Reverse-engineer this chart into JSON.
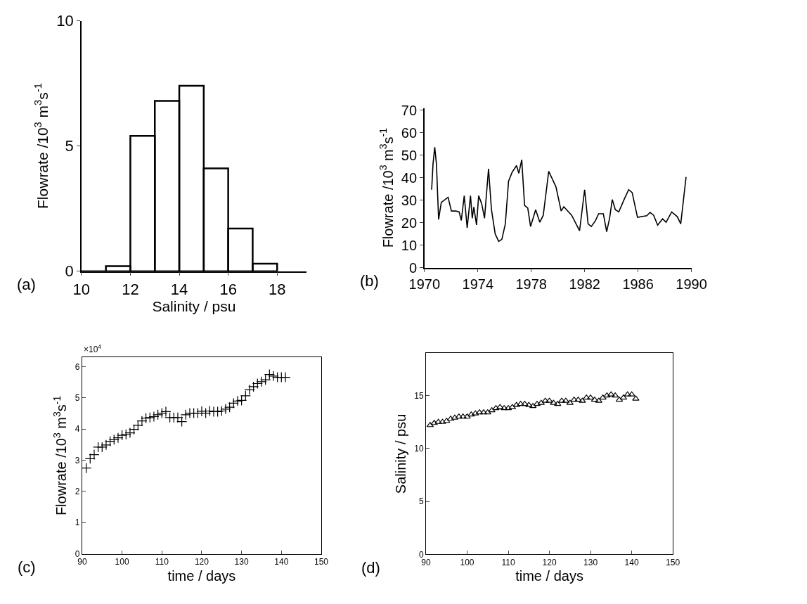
{
  "chart_data": [
    {
      "type": "histogram",
      "xlabel": "Salinity / psu",
      "ylabel": "Flowrate /10$^{3}$ m$^{3}$s$^{-1}$",
      "annotations": [
        "(a)"
      ],
      "bins": [
        10,
        11,
        12,
        13,
        14,
        15,
        16,
        17,
        18
      ],
      "values": [
        0,
        0.2,
        5.4,
        6.8,
        7.4,
        4.1,
        1.7,
        0.3
      ],
      "color": "#000000",
      "xlim": [
        10,
        19.2
      ],
      "xticks": [
        10,
        12,
        14,
        16,
        18
      ],
      "ylim": [
        0,
        10
      ],
      "yticks": [
        0,
        5,
        10
      ]
    },
    {
      "type": "line",
      "ylabel": "Flowrate /10$^{3}$ m$^{3}$s$^{-1}$",
      "annotations": [
        "(b)"
      ],
      "color": "#000000",
      "x": [
        1970.54,
        1970.64,
        1970.77,
        1970.9,
        1971.06,
        1971.26,
        1971.77,
        1972.02,
        1972.36,
        1972.6,
        1972.76,
        1972.98,
        1973.2,
        1973.45,
        1973.58,
        1973.7,
        1973.9,
        1974.06,
        1974.29,
        1974.5,
        1974.8,
        1975.02,
        1975.3,
        1975.56,
        1975.8,
        1976.06,
        1976.3,
        1976.57,
        1976.9,
        1977.07,
        1977.29,
        1977.5,
        1977.74,
        1977.95,
        1978.33,
        1978.64,
        1978.9,
        1979.31,
        1979.85,
        1980.24,
        1980.44,
        1981.03,
        1981.62,
        1982.0,
        1982.26,
        1982.5,
        1982.8,
        1983.05,
        1983.4,
        1983.65,
        1983.87,
        1984.07,
        1984.3,
        1984.56,
        1985.0,
        1985.3,
        1985.56,
        1985.96,
        1986.66,
        1986.9,
        1987.17,
        1987.47,
        1987.84,
        1988.1,
        1988.52,
        1988.94,
        1989.2,
        1989.6
      ],
      "values": [
        34.7,
        46,
        53.6,
        46,
        21.4,
        29,
        31.3,
        25.2,
        25.2,
        24.8,
        21,
        32,
        17.7,
        32,
        22,
        27,
        19,
        32,
        28.4,
        22,
        44,
        25.8,
        15,
        11.7,
        12.6,
        19.5,
        38.5,
        42.5,
        45.4,
        42,
        48,
        27.7,
        26.5,
        18.3,
        25.8,
        20.2,
        23.3,
        42.9,
        36,
        25.2,
        27.1,
        23.3,
        16.4,
        34.7,
        19.5,
        18.3,
        20.8,
        24,
        24,
        16,
        22,
        30.3,
        25.8,
        24.8,
        30.9,
        34.7,
        33.4,
        22.4,
        23.1,
        24.6,
        23.3,
        18.9,
        21.7,
        20.2,
        24.8,
        22.7,
        19.5,
        40.4
      ],
      "xlim": [
        1970,
        1990
      ],
      "xticks": [
        1970,
        1974,
        1978,
        1982,
        1986,
        1990
      ],
      "ylim": [
        0,
        71
      ],
      "yticks": [
        0,
        10,
        20,
        30,
        40,
        50,
        60,
        70
      ]
    },
    {
      "type": "scatter",
      "marker": "cross",
      "xlabel": "time / days",
      "ylabel": "Flowrate /10$^{3}$ m$^{3}$s$^{-1}$",
      "annotations": [
        "(c)",
        "×10$^{4}$"
      ],
      "color": "#000000",
      "x": [
        91,
        92,
        93,
        94,
        95,
        96,
        97,
        98,
        99,
        100,
        101,
        102,
        103,
        104,
        105,
        106,
        107,
        108,
        109,
        110,
        111,
        112,
        113,
        114,
        115,
        116,
        117,
        118,
        119,
        120,
        121,
        122,
        123,
        124,
        125,
        126,
        127,
        128,
        129,
        130,
        131,
        132,
        133,
        134,
        135,
        136,
        137,
        138,
        139,
        140,
        141
      ],
      "values": [
        2.75,
        3.05,
        3.18,
        3.42,
        3.42,
        3.49,
        3.61,
        3.66,
        3.72,
        3.8,
        3.83,
        3.88,
        3.99,
        4.12,
        4.26,
        4.35,
        4.37,
        4.4,
        4.46,
        4.51,
        4.56,
        4.37,
        4.37,
        4.37,
        4.24,
        4.46,
        4.51,
        4.51,
        4.51,
        4.57,
        4.51,
        4.58,
        4.56,
        4.56,
        4.58,
        4.64,
        4.7,
        4.83,
        4.9,
        4.92,
        5.07,
        5.26,
        5.36,
        5.46,
        5.52,
        5.58,
        5.75,
        5.7,
        5.66,
        5.66,
        5.66
      ],
      "xlim": [
        90,
        150
      ],
      "xticks": [
        90,
        100,
        110,
        120,
        130,
        140,
        150
      ],
      "ylim": [
        0,
        6.3
      ],
      "yticks": [
        0,
        1,
        2,
        3,
        4,
        5,
        6
      ]
    },
    {
      "type": "scatter",
      "marker": "triangle",
      "xlabel": "time / days",
      "ylabel": "Salinity / psu",
      "annotations": [
        "(d)"
      ],
      "color": "#000000",
      "x": [
        91,
        92,
        93,
        94,
        95,
        96,
        97,
        98,
        99,
        100,
        101,
        102,
        103,
        104,
        105,
        106,
        107,
        108,
        109,
        110,
        111,
        112,
        113,
        114,
        115,
        116,
        117,
        118,
        119,
        120,
        121,
        122,
        123,
        124,
        125,
        126,
        127,
        128,
        129,
        130,
        131,
        132,
        133,
        134,
        135,
        136,
        137,
        138,
        139,
        140,
        141
      ],
      "values": [
        12.2,
        12.4,
        12.5,
        12.5,
        12.6,
        12.8,
        12.9,
        13.0,
        13.0,
        13.0,
        13.2,
        13.3,
        13.4,
        13.4,
        13.4,
        13.6,
        13.8,
        13.9,
        13.8,
        13.8,
        13.9,
        14.1,
        14.2,
        14.2,
        14.1,
        14.0,
        14.2,
        14.3,
        14.5,
        14.5,
        14.3,
        14.2,
        14.5,
        14.5,
        14.3,
        14.6,
        14.6,
        14.5,
        14.8,
        14.8,
        14.6,
        14.5,
        14.8,
        15.0,
        15.1,
        15.0,
        14.6,
        14.8,
        15.1,
        15.1,
        14.7
      ],
      "xlim": [
        90,
        150
      ],
      "xticks": [
        90,
        100,
        110,
        120,
        130,
        140,
        150
      ],
      "ylim": [
        0,
        19
      ],
      "yticks": [
        0,
        5,
        10,
        15
      ]
    }
  ]
}
